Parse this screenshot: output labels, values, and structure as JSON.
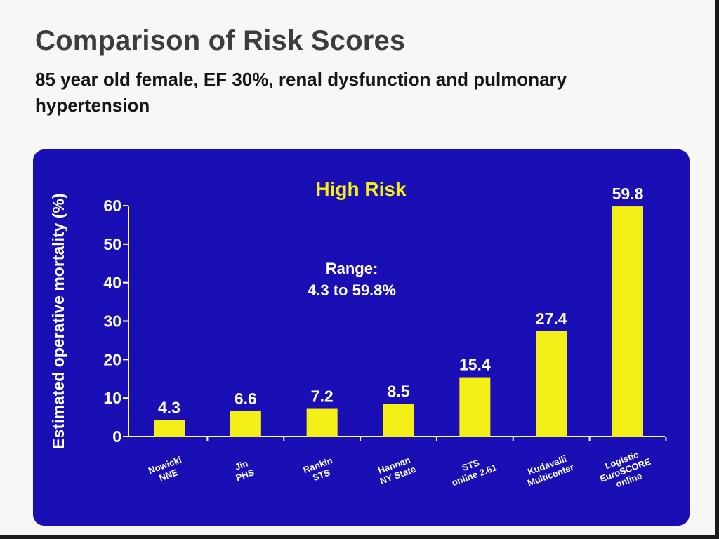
{
  "slide": {
    "title": "Comparison of Risk Scores",
    "subtitle": "85 year old female, EF 30%, renal dysfunction and pulmonary hypertension"
  },
  "colors": {
    "panel_background": "#1a0fb5",
    "bar": "#f5ef18",
    "panel_title": "#f5ef18",
    "axis_and_labels": "#ffffff"
  },
  "chart_data": {
    "type": "bar",
    "title": "High Risk",
    "ylabel": "Estimated operative mortality (%)",
    "xlabel": "",
    "ylim": [
      0,
      60
    ],
    "yticks": [
      0,
      10,
      20,
      30,
      40,
      50,
      60
    ],
    "grid": false,
    "legend": "none",
    "annotation": [
      "Range:",
      "4.3 to 59.8%"
    ],
    "categories": [
      [
        "Nowicki",
        "NNE"
      ],
      [
        "Jin",
        "PHS"
      ],
      [
        "Rankin",
        "STS"
      ],
      [
        "Hannan",
        "NY State"
      ],
      [
        "STS",
        "online 2.61"
      ],
      [
        "Kudavalli",
        "Multicenter"
      ],
      [
        "Logistic",
        "EuroSCORE",
        "online"
      ]
    ],
    "values": [
      4.3,
      6.6,
      7.2,
      8.5,
      15.4,
      27.4,
      59.8
    ],
    "value_labels": [
      "4.3",
      "6.6",
      "7.2",
      "8.5",
      "15.4",
      "27.4",
      "59.8"
    ]
  }
}
